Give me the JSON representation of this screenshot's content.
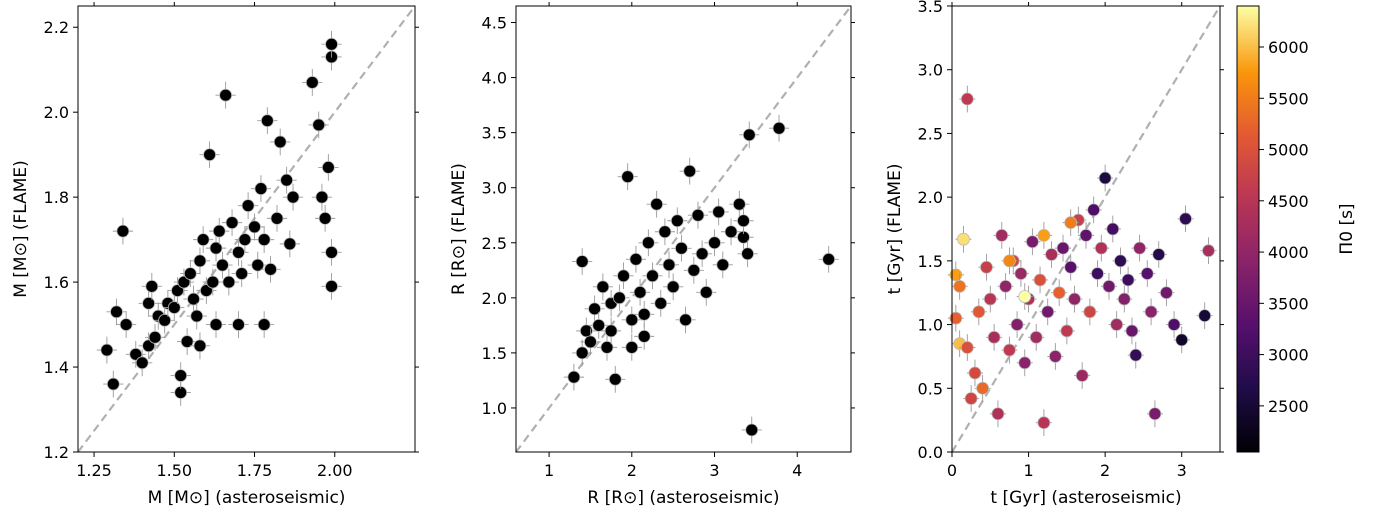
{
  "chart_data": [
    {
      "type": "scatter",
      "xlabel": "M [M⊙] (asteroseismic)",
      "ylabel": "M [M⊙] (FLAME)",
      "xlim": [
        1.2,
        2.25
      ],
      "ylim": [
        1.2,
        2.25
      ],
      "xticks": [
        "1.25",
        "1.50",
        "1.75",
        "2.00"
      ],
      "yticks": [
        "1.2",
        "1.4",
        "1.6",
        "1.8",
        "2.0",
        "2.2"
      ],
      "identity_line": true,
      "marker_color": "#000000",
      "points": [
        [
          1.29,
          1.44
        ],
        [
          1.31,
          1.36
        ],
        [
          1.32,
          1.53
        ],
        [
          1.35,
          1.5
        ],
        [
          1.34,
          1.72
        ],
        [
          1.38,
          1.43
        ],
        [
          1.4,
          1.41
        ],
        [
          1.42,
          1.45
        ],
        [
          1.44,
          1.47
        ],
        [
          1.45,
          1.52
        ],
        [
          1.42,
          1.55
        ],
        [
          1.47,
          1.51
        ],
        [
          1.43,
          1.59
        ],
        [
          1.48,
          1.55
        ],
        [
          1.5,
          1.54
        ],
        [
          1.52,
          1.34
        ],
        [
          1.52,
          1.38
        ],
        [
          1.51,
          1.58
        ],
        [
          1.53,
          1.6
        ],
        [
          1.54,
          1.46
        ],
        [
          1.55,
          1.62
        ],
        [
          1.56,
          1.56
        ],
        [
          1.58,
          1.65
        ],
        [
          1.6,
          1.58
        ],
        [
          1.59,
          1.7
        ],
        [
          1.61,
          1.9
        ],
        [
          1.62,
          1.6
        ],
        [
          1.63,
          1.68
        ],
        [
          1.65,
          1.64
        ],
        [
          1.64,
          1.72
        ],
        [
          1.66,
          2.04
        ],
        [
          1.67,
          1.6
        ],
        [
          1.68,
          1.74
        ],
        [
          1.7,
          1.67
        ],
        [
          1.72,
          1.7
        ],
        [
          1.71,
          1.62
        ],
        [
          1.73,
          1.78
        ],
        [
          1.75,
          1.73
        ],
        [
          1.76,
          1.64
        ],
        [
          1.77,
          1.82
        ],
        [
          1.78,
          1.7
        ],
        [
          1.79,
          1.98
        ],
        [
          1.8,
          1.63
        ],
        [
          1.82,
          1.75
        ],
        [
          1.83,
          1.93
        ],
        [
          1.85,
          1.84
        ],
        [
          1.86,
          1.69
        ],
        [
          1.87,
          1.8
        ],
        [
          1.93,
          2.07
        ],
        [
          1.95,
          1.97
        ],
        [
          1.96,
          1.8
        ],
        [
          1.97,
          1.75
        ],
        [
          1.98,
          1.87
        ],
        [
          1.99,
          1.59
        ],
        [
          1.99,
          1.67
        ],
        [
          1.99,
          2.13
        ],
        [
          1.99,
          2.16
        ],
        [
          1.78,
          1.5
        ],
        [
          1.7,
          1.5
        ],
        [
          1.58,
          1.45
        ],
        [
          1.63,
          1.5
        ],
        [
          1.57,
          1.52
        ]
      ]
    },
    {
      "type": "scatter",
      "xlabel": "R [R⊙] (asteroseismic)",
      "ylabel": "R [R⊙] (FLAME)",
      "xlim": [
        0.6,
        4.65
      ],
      "ylim": [
        0.6,
        4.65
      ],
      "xticks": [
        "1",
        "2",
        "3",
        "4"
      ],
      "yticks": [
        "1.0",
        "1.5",
        "2.0",
        "2.5",
        "3.0",
        "3.5",
        "4.0",
        "4.5"
      ],
      "identity_line": true,
      "marker_color": "#000000",
      "points": [
        [
          1.3,
          1.28
        ],
        [
          1.4,
          1.5
        ],
        [
          1.45,
          1.7
        ],
        [
          1.4,
          2.33
        ],
        [
          1.5,
          1.6
        ],
        [
          1.55,
          1.9
        ],
        [
          1.6,
          1.75
        ],
        [
          1.65,
          2.1
        ],
        [
          1.7,
          1.55
        ],
        [
          1.75,
          1.95
        ],
        [
          1.8,
          1.26
        ],
        [
          1.85,
          2.0
        ],
        [
          1.9,
          2.2
        ],
        [
          1.95,
          3.1
        ],
        [
          2.0,
          1.8
        ],
        [
          2.05,
          2.35
        ],
        [
          2.1,
          2.05
        ],
        [
          2.15,
          1.65
        ],
        [
          2.2,
          2.5
        ],
        [
          2.25,
          2.2
        ],
        [
          2.3,
          2.85
        ],
        [
          2.35,
          1.95
        ],
        [
          2.4,
          2.6
        ],
        [
          2.45,
          2.3
        ],
        [
          2.5,
          2.1
        ],
        [
          2.55,
          2.7
        ],
        [
          2.6,
          2.45
        ],
        [
          2.65,
          1.8
        ],
        [
          2.7,
          3.15
        ],
        [
          2.75,
          2.25
        ],
        [
          2.8,
          2.75
        ],
        [
          2.85,
          2.4
        ],
        [
          2.9,
          2.05
        ],
        [
          3.0,
          2.5
        ],
        [
          3.05,
          2.78
        ],
        [
          3.1,
          2.3
        ],
        [
          3.2,
          2.6
        ],
        [
          3.3,
          2.85
        ],
        [
          3.35,
          2.55
        ],
        [
          3.4,
          2.4
        ],
        [
          3.42,
          3.48
        ],
        [
          3.45,
          0.8
        ],
        [
          3.78,
          3.54
        ],
        [
          4.38,
          2.35
        ],
        [
          3.35,
          2.7
        ],
        [
          2.15,
          1.85
        ],
        [
          1.75,
          1.7
        ],
        [
          2.0,
          1.55
        ]
      ]
    },
    {
      "type": "scatter",
      "xlabel": "t [Gyr] (asteroseismic)",
      "ylabel": "t [Gyr] (FLAME)",
      "xlim": [
        0.0,
        3.5
      ],
      "ylim": [
        0.0,
        3.5
      ],
      "xticks": [
        "0",
        "1",
        "2",
        "3"
      ],
      "yticks": [
        "0.0",
        "0.5",
        "1.0",
        "1.5",
        "2.0",
        "2.5",
        "3.0",
        "3.5"
      ],
      "identity_line": true,
      "colorbar": {
        "label": "Π0 [s]",
        "ticks": [
          "2500",
          "3000",
          "3500",
          "4000",
          "4500",
          "5000",
          "5500",
          "6000"
        ],
        "range": [
          2050,
          6400
        ],
        "colormap": "inferno"
      },
      "points": [
        [
          0.2,
          2.77,
          4600
        ],
        [
          0.15,
          1.67,
          6200
        ],
        [
          0.05,
          1.39,
          5800
        ],
        [
          0.1,
          1.3,
          5400
        ],
        [
          0.05,
          1.05,
          5200
        ],
        [
          0.1,
          0.85,
          6000
        ],
        [
          0.2,
          0.82,
          5000
        ],
        [
          0.25,
          0.42,
          4800
        ],
        [
          0.3,
          0.62,
          4900
        ],
        [
          0.35,
          1.1,
          5100
        ],
        [
          0.4,
          0.5,
          5300
        ],
        [
          0.45,
          1.45,
          4700
        ],
        [
          0.5,
          1.2,
          4500
        ],
        [
          0.55,
          0.9,
          4300
        ],
        [
          0.6,
          0.3,
          4400
        ],
        [
          0.65,
          1.7,
          4200
        ],
        [
          0.7,
          1.3,
          4000
        ],
        [
          0.75,
          0.8,
          4600
        ],
        [
          0.8,
          1.5,
          4800
        ],
        [
          0.85,
          1.0,
          3800
        ],
        [
          0.9,
          1.4,
          4100
        ],
        [
          0.95,
          0.7,
          3900
        ],
        [
          1.0,
          1.2,
          4400
        ],
        [
          1.05,
          1.65,
          3700
        ],
        [
          1.1,
          0.9,
          4200
        ],
        [
          1.15,
          1.35,
          5000
        ],
        [
          1.2,
          0.23,
          4500
        ],
        [
          1.25,
          1.1,
          3600
        ],
        [
          1.3,
          1.55,
          4300
        ],
        [
          1.35,
          0.75,
          3900
        ],
        [
          1.4,
          1.25,
          5200
        ],
        [
          1.45,
          1.6,
          3500
        ],
        [
          1.5,
          0.95,
          4600
        ],
        [
          1.55,
          1.45,
          3300
        ],
        [
          1.6,
          1.2,
          4000
        ],
        [
          1.65,
          1.82,
          4700
        ],
        [
          1.7,
          0.6,
          4100
        ],
        [
          1.75,
          1.7,
          3400
        ],
        [
          1.8,
          1.1,
          4800
        ],
        [
          1.85,
          1.9,
          3200
        ],
        [
          1.9,
          1.4,
          3000
        ],
        [
          1.95,
          1.6,
          4400
        ],
        [
          2.0,
          2.15,
          2600
        ],
        [
          2.05,
          1.3,
          3600
        ],
        [
          2.1,
          1.75,
          3100
        ],
        [
          2.15,
          1.0,
          4200
        ],
        [
          2.2,
          1.5,
          2800
        ],
        [
          2.25,
          1.2,
          3800
        ],
        [
          2.3,
          1.35,
          3000
        ],
        [
          2.35,
          0.95,
          3500
        ],
        [
          2.4,
          0.76,
          2900
        ],
        [
          2.45,
          1.6,
          4000
        ],
        [
          2.55,
          1.4,
          3300
        ],
        [
          2.6,
          1.1,
          3900
        ],
        [
          2.65,
          0.3,
          3700
        ],
        [
          2.7,
          1.55,
          2700
        ],
        [
          2.8,
          1.25,
          3600
        ],
        [
          2.9,
          1.0,
          3200
        ],
        [
          3.0,
          0.88,
          2400
        ],
        [
          3.05,
          1.83,
          2800
        ],
        [
          3.3,
          1.07,
          2500
        ],
        [
          3.35,
          1.58,
          4300
        ],
        [
          0.95,
          1.22,
          6400
        ],
        [
          1.55,
          1.8,
          5500
        ],
        [
          1.2,
          1.7,
          5800
        ],
        [
          0.75,
          1.5,
          5600
        ]
      ]
    }
  ]
}
